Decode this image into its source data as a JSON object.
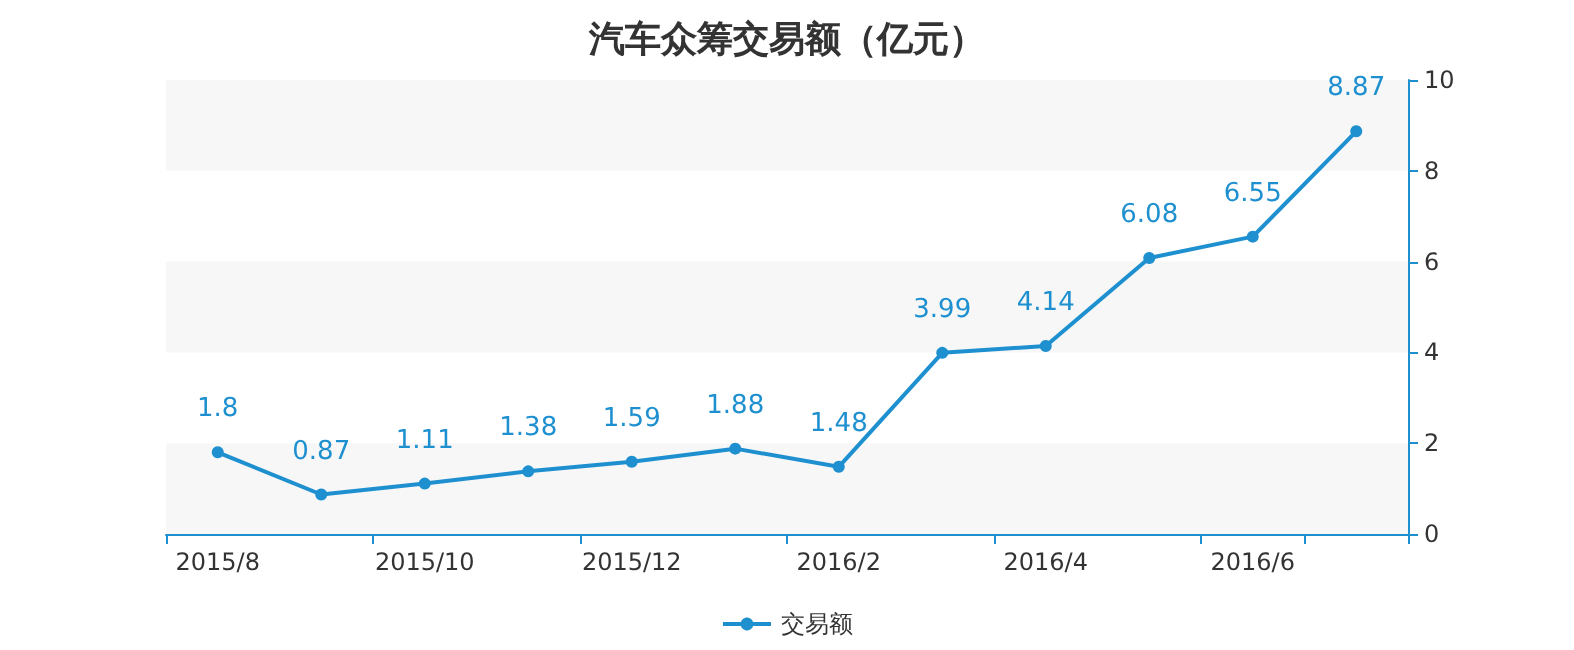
{
  "chart_data": {
    "type": "line",
    "title": "汽车众筹交易额（亿元）",
    "categories": [
      "2015/8",
      null,
      "2015/10",
      null,
      "2015/12",
      null,
      "2016/2",
      null,
      "2016/4",
      null,
      "2016/6",
      null
    ],
    "series": [
      {
        "name": "交易额",
        "color": "#1e90d0",
        "values": [
          1.8,
          0.87,
          1.11,
          1.38,
          1.59,
          1.88,
          1.48,
          3.99,
          4.14,
          6.08,
          6.55,
          8.87
        ]
      }
    ],
    "ylim": [
      0,
      10
    ],
    "yticks": [
      0,
      2,
      4,
      6,
      8,
      10
    ],
    "bands": [
      {
        "axis": "y",
        "from": 0,
        "to": 2,
        "color": "#f7f7f7"
      },
      {
        "axis": "y",
        "from": 4,
        "to": 6,
        "color": "#f7f7f7"
      },
      {
        "axis": "y",
        "from": 8,
        "to": 10,
        "color": "#f7f7f7"
      }
    ],
    "legend": "bottom",
    "data_labels": true,
    "marker": "circle",
    "line_style": "solid"
  }
}
